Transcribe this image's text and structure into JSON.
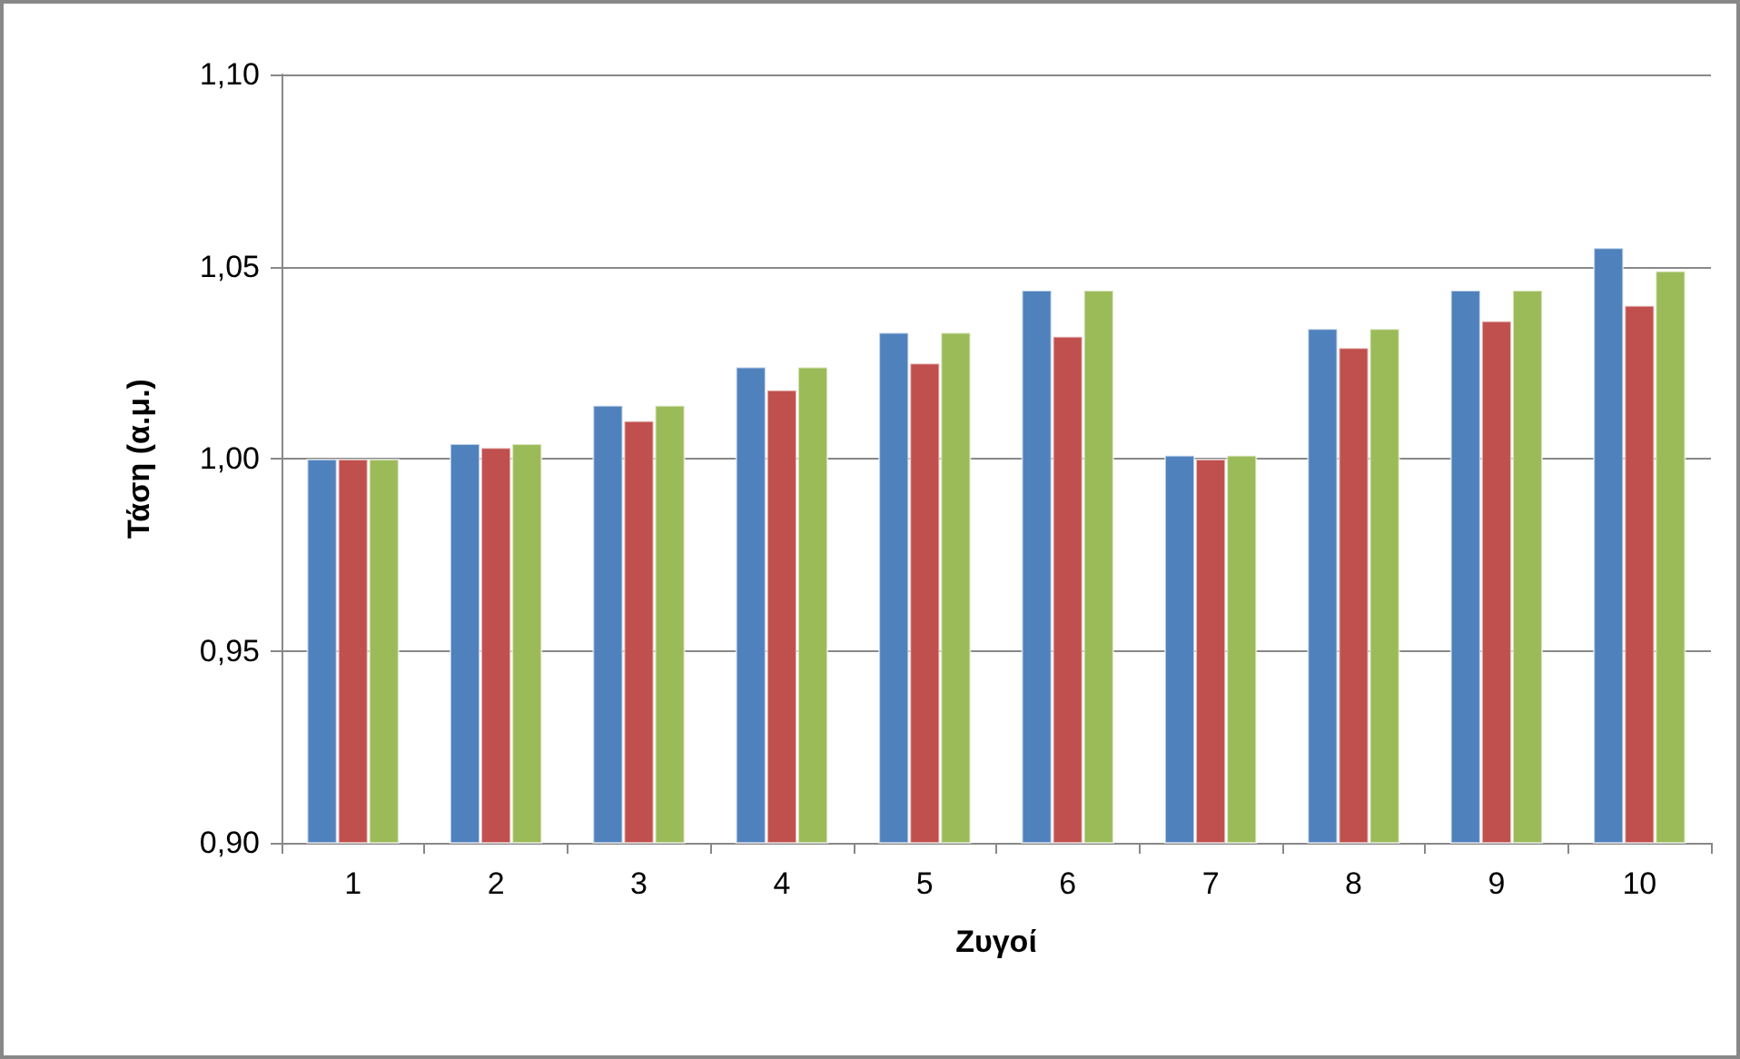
{
  "chart_data": {
    "type": "bar",
    "xlabel": "Ζυγοί",
    "ylabel": "Τάση (α.μ.)",
    "categories": [
      "1",
      "2",
      "3",
      "4",
      "5",
      "6",
      "7",
      "8",
      "9",
      "10"
    ],
    "series": [
      {
        "color": "#4f81bd",
        "values": [
          1.0,
          1.004,
          1.014,
          1.024,
          1.033,
          1.044,
          1.001,
          1.034,
          1.044,
          1.055
        ]
      },
      {
        "color": "#c0504d",
        "values": [
          1.0,
          1.003,
          1.01,
          1.018,
          1.025,
          1.032,
          1.0,
          1.029,
          1.036,
          1.04
        ]
      },
      {
        "color": "#9bbb59",
        "values": [
          1.0,
          1.004,
          1.014,
          1.024,
          1.033,
          1.044,
          1.001,
          1.034,
          1.044,
          1.049
        ]
      }
    ],
    "ylim": [
      0.9,
      1.1
    ],
    "yticks": [
      {
        "value": 0.9,
        "label": "0,90"
      },
      {
        "value": 0.95,
        "label": "0,95"
      },
      {
        "value": 1.0,
        "label": "1,00"
      },
      {
        "value": 1.05,
        "label": "1,05"
      },
      {
        "value": 1.1,
        "label": "1,10"
      }
    ],
    "grid": "y"
  }
}
